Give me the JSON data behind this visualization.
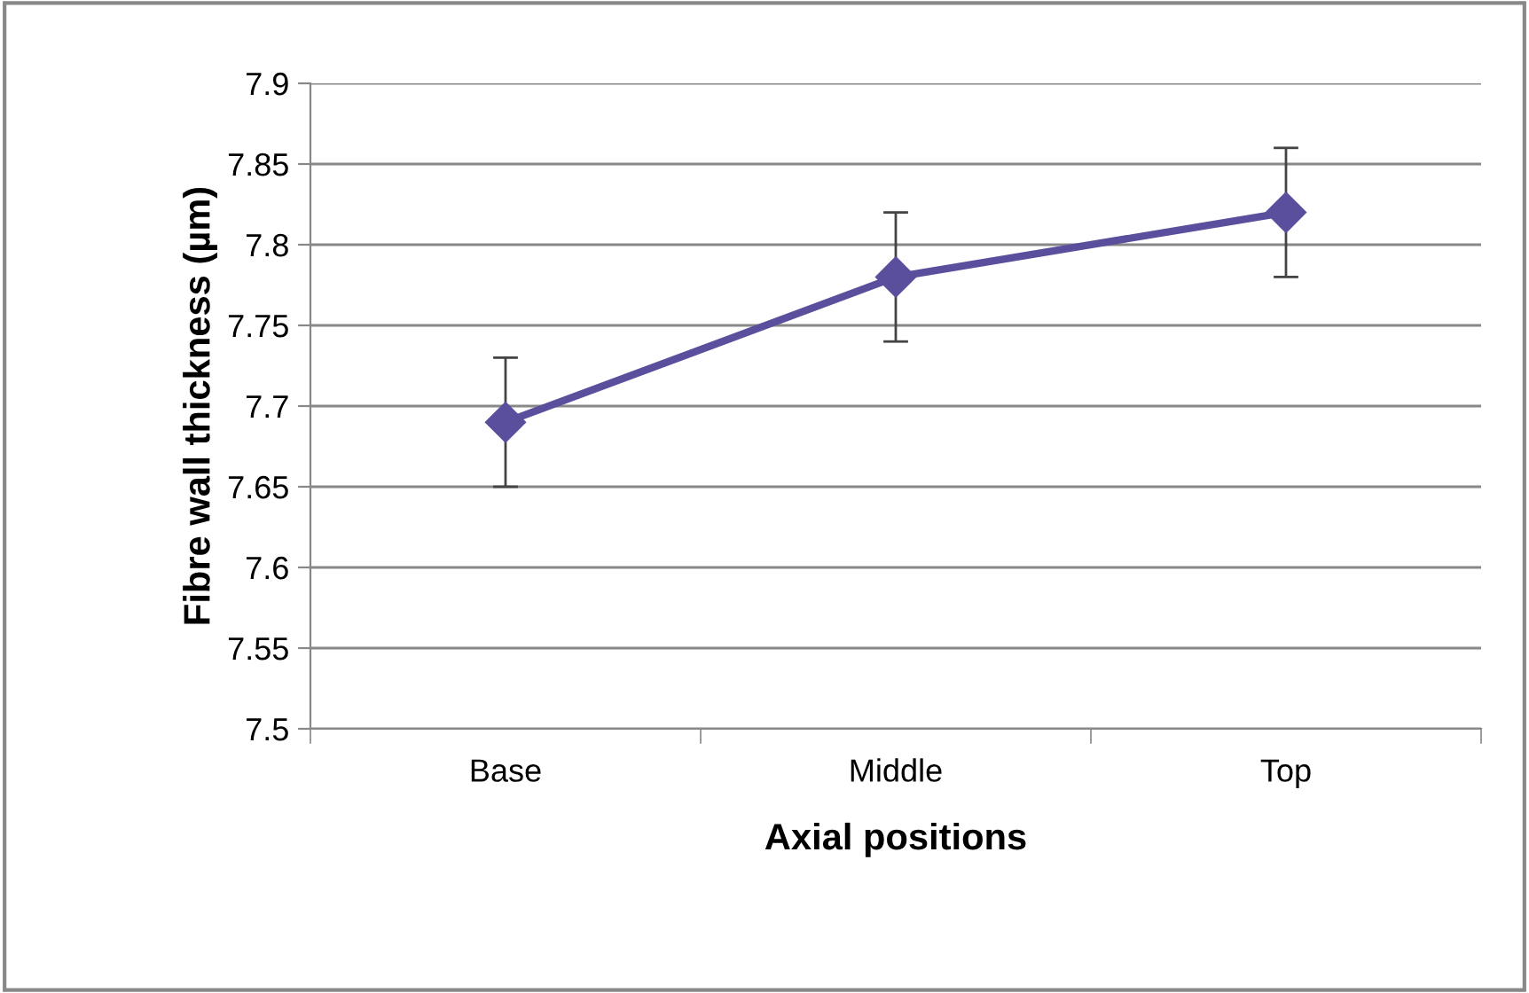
{
  "chart_data": {
    "type": "line",
    "xlabel": "Axial positions",
    "ylabel": "Fibre wall thickness (µm)",
    "categories": [
      "Base",
      "Middle",
      "Top"
    ],
    "series": [
      {
        "color": "#5a4f9c",
        "values": [
          7.69,
          7.78,
          7.82
        ],
        "errors": [
          0.04,
          0.04,
          0.04
        ]
      }
    ],
    "ylim": [
      7.5,
      7.9
    ],
    "yticks": [
      7.5,
      7.55,
      7.6,
      7.65,
      7.7,
      7.75,
      7.8,
      7.85,
      7.9
    ],
    "grid": "y",
    "marker": "diamond",
    "line_style": "solid",
    "legend": false
  }
}
